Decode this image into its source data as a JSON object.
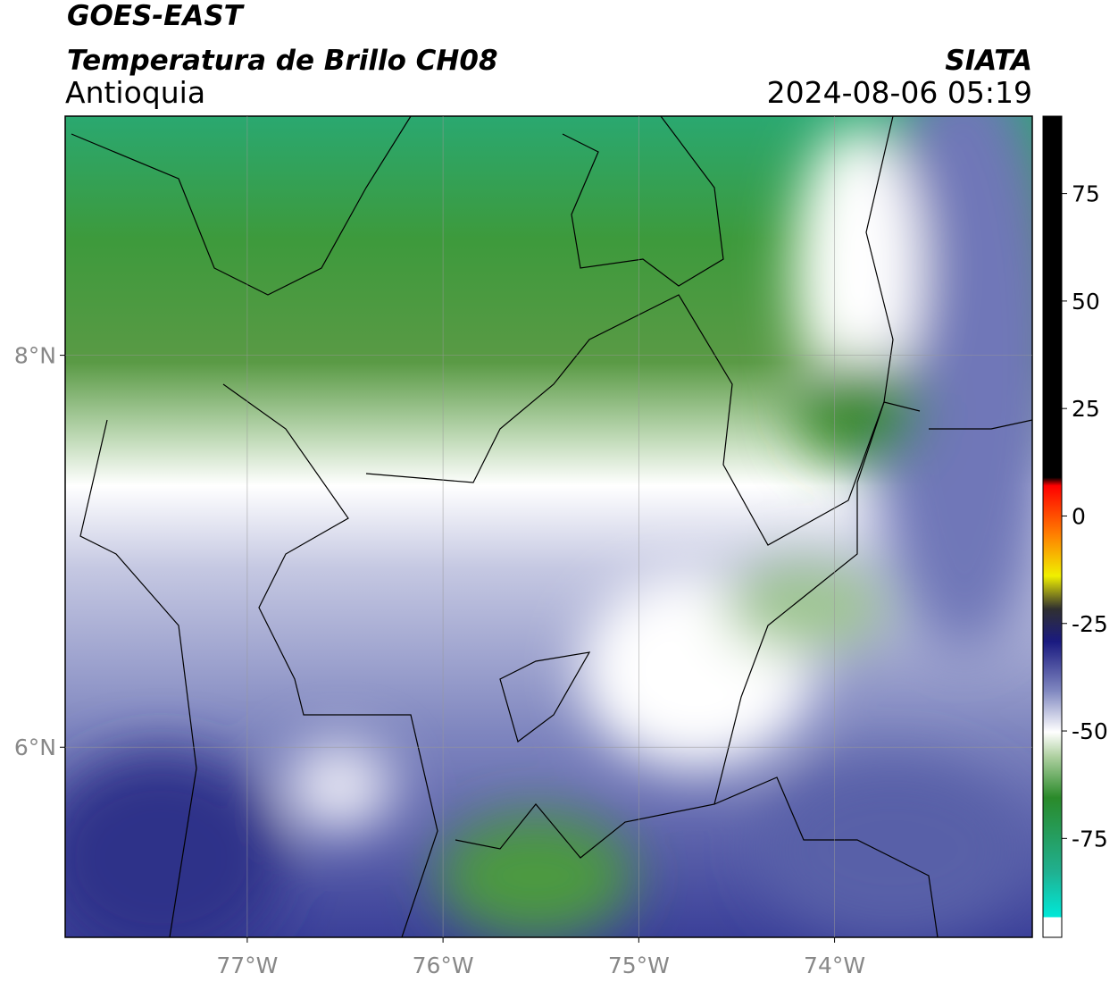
{
  "header": {
    "title": "GOES-EAST",
    "subtitle": "Temperatura de Brillo CH08",
    "region": "Antioquia",
    "source": "SIATA",
    "timestamp": "2024-08-06 05:19"
  },
  "map": {
    "xlim": [
      -77.93,
      -72.99
    ],
    "ylim": [
      5.03,
      9.22
    ],
    "xticks": [
      {
        "value": -77,
        "label": "77°W"
      },
      {
        "value": -76,
        "label": "76°W"
      },
      {
        "value": -75,
        "label": "75°W"
      },
      {
        "value": -74,
        "label": "74°W"
      }
    ],
    "yticks": [
      {
        "value": 6,
        "label": "6°N"
      },
      {
        "value": 8,
        "label": "8°N"
      }
    ]
  },
  "colorbar": {
    "lim": [
      -98,
      93
    ],
    "ticks": [
      75,
      50,
      25,
      0,
      -25,
      -50,
      -75
    ]
  }
}
